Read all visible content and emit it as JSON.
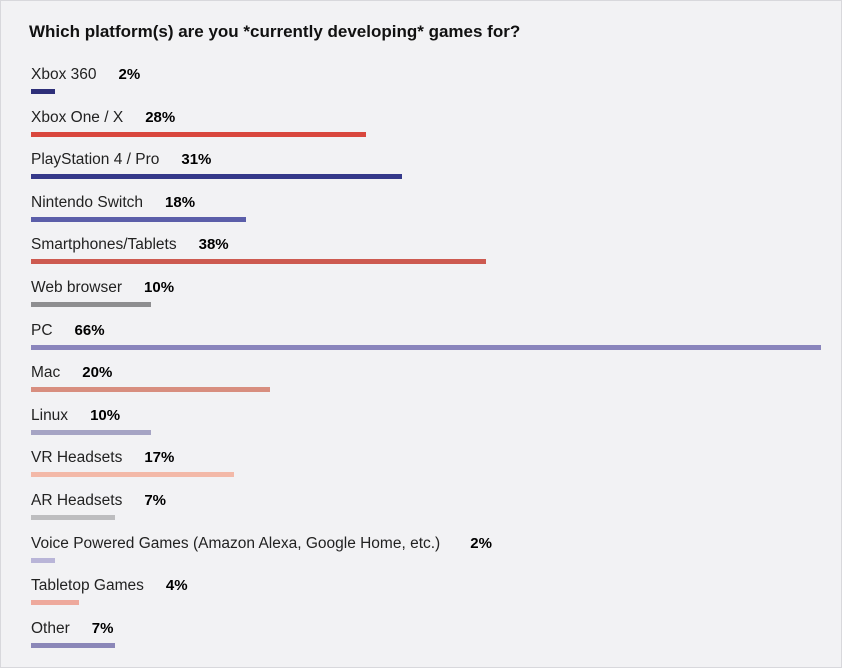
{
  "chart_data": {
    "type": "bar",
    "orientation": "horizontal",
    "title": "Which platform(s) are you *currently developing* games for?",
    "unit": "%",
    "xlim": [
      0,
      66
    ],
    "grid": false,
    "categories": [
      "Xbox 360",
      "Xbox One / X",
      "PlayStation 4 / Pro",
      "Nintendo Switch",
      "Smartphones/Tablets",
      "Web browser",
      "PC",
      "Mac",
      "Linux",
      "VR Headsets",
      "AR Headsets",
      "Voice Powered Games (Amazon Alexa, Google Home, etc.)",
      "Tabletop Games",
      "Other"
    ],
    "values": [
      2,
      28,
      31,
      18,
      38,
      10,
      66,
      20,
      10,
      17,
      7,
      2,
      4,
      7
    ],
    "value_labels": [
      "2%",
      "28%",
      "31%",
      "18%",
      "38%",
      "10%",
      "66%",
      "20%",
      "10%",
      "17%",
      "7%",
      "2%",
      "4%",
      "7%"
    ],
    "colors": [
      "#2e2f79",
      "#d9473d",
      "#35398a",
      "#5b5ea9",
      "#cd5a50",
      "#8e8e90",
      "#8a85bc",
      "#d88e7f",
      "#a6a4c4",
      "#f3b9a8",
      "#bdbdbf",
      "#b9b5d8",
      "#eea99c",
      "#8b87b8"
    ]
  }
}
